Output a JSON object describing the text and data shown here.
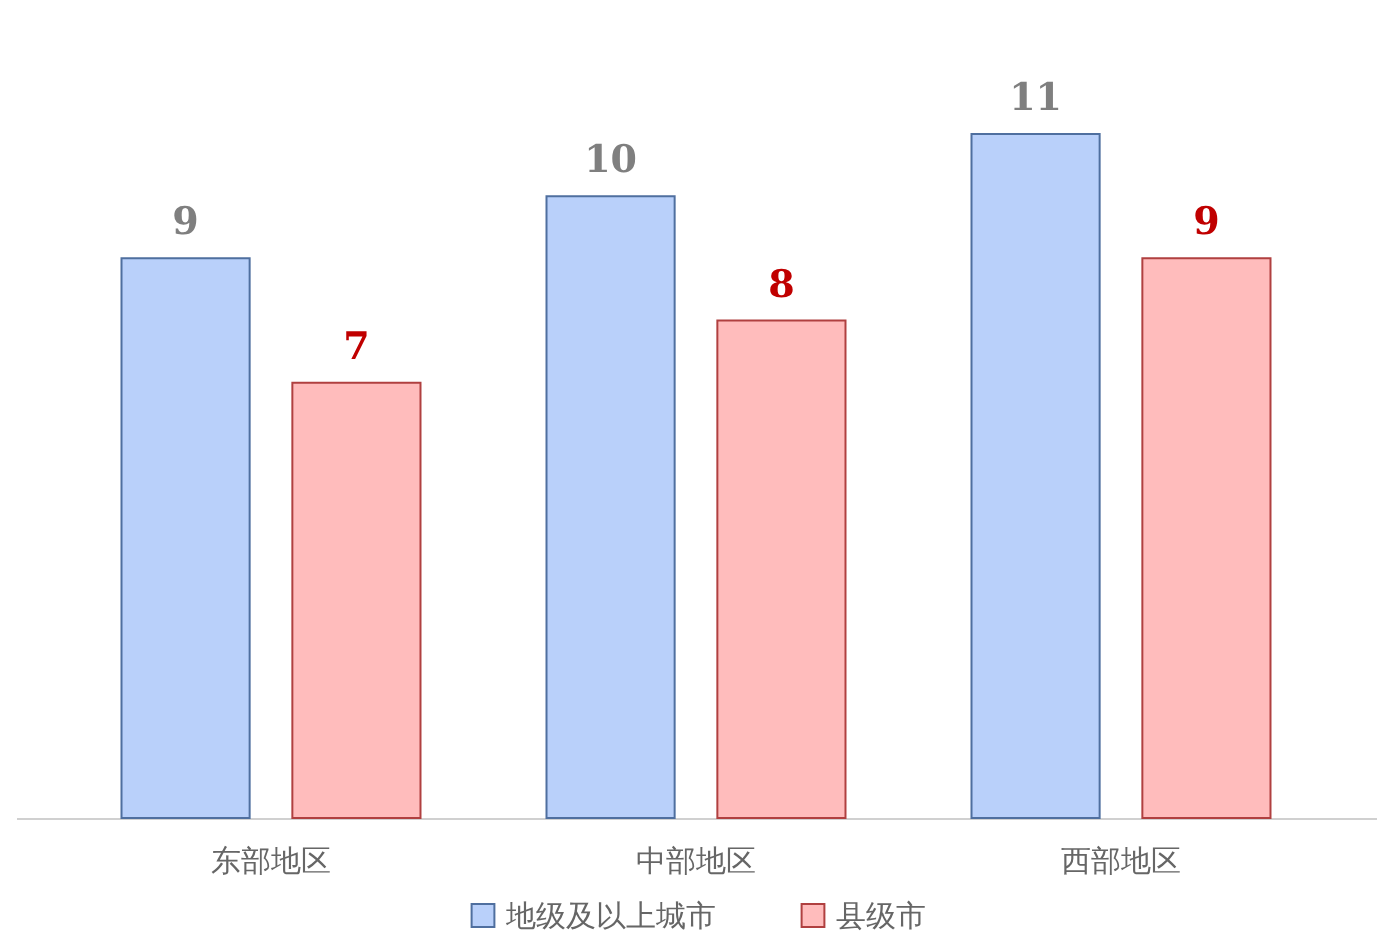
{
  "chart_data": {
    "type": "bar",
    "categories": [
      "东部地区",
      "中部地区",
      "西部地区"
    ],
    "series": [
      {
        "name": "地级及以上城市",
        "color": "#b9d0fa",
        "values": [
          9,
          10,
          11
        ]
      },
      {
        "name": "县级市",
        "color": "#ffbcbc",
        "values": [
          7,
          8,
          9
        ]
      }
    ],
    "data_labels": true,
    "legend": "bottom"
  }
}
